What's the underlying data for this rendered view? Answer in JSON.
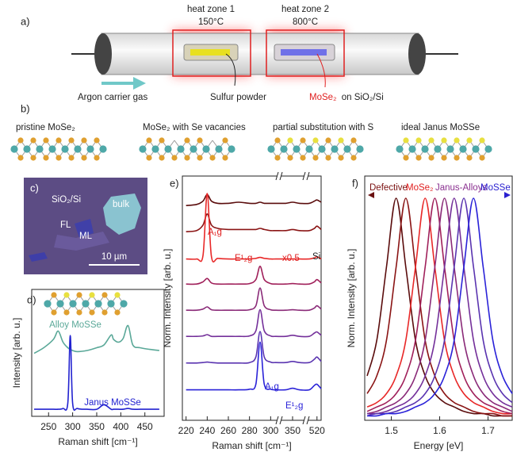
{
  "panel_a": {
    "label": "a)",
    "zone1_title": "heat zone 1",
    "zone1_temp": "150°C",
    "zone2_title": "heat zone 2",
    "zone2_temp": "800°C",
    "gas": "Argon carrier gas",
    "source": "Sulfur powder",
    "substrate_material": "MoSe₂",
    "substrate_rest": "on SiO₂/Si"
  },
  "panel_b": {
    "label": "b)",
    "structures": [
      "pristine MoSe₂",
      "MoSe₂ with Se vacancies",
      "partial substitution with S",
      "ideal Janus MoSSe"
    ]
  },
  "panel_c": {
    "label": "c)",
    "substrate": "SiO₂/Si",
    "bulk": "bulk",
    "few_layer": "FL",
    "monolayer": "ML",
    "scale_bar": "10 µm"
  },
  "chart_data": [
    {
      "type": "line",
      "label": "d)",
      "xlabel": "Raman shift [cm⁻¹]",
      "ylabel": "Intensity [arb. u.]",
      "xlim": [
        215,
        490
      ],
      "xticks": [
        250,
        300,
        350,
        400,
        450
      ],
      "x": [
        220,
        240,
        260,
        270,
        280,
        290,
        295,
        300,
        310,
        330,
        350,
        365,
        380,
        385,
        395,
        405,
        415,
        425,
        440,
        460,
        480
      ],
      "series": [
        {
          "name": "Alloy MoSSe",
          "color": "#5aa898",
          "values": [
            0.35,
            0.45,
            0.6,
            0.75,
            0.55,
            0.45,
            0.42,
            0.4,
            0.38,
            0.4,
            0.45,
            0.5,
            0.68,
            0.6,
            0.55,
            0.62,
            0.85,
            0.5,
            0.45,
            0.42,
            0.4
          ]
        },
        {
          "name": "Janus MoSSe",
          "color": "#2222d0",
          "values": [
            0.02,
            0.02,
            0.02,
            0.02,
            0.03,
            0.1,
            1.0,
            0.1,
            0.03,
            0.02,
            0.02,
            0.08,
            0.02,
            0.02,
            0.02,
            0.02,
            0.03,
            0.02,
            0.02,
            0.02,
            0.02
          ]
        }
      ]
    },
    {
      "type": "line",
      "label": "e)",
      "xlabel": "Raman shift [cm⁻¹]",
      "ylabel": "Norm. Intensity [arb. u.]",
      "xlim": [
        [
          218,
          305
        ],
        [
          335,
          365
        ],
        [
          505,
          528
        ]
      ],
      "xticks": [
        220,
        240,
        260,
        280,
        300,
        350,
        520
      ],
      "x": [
        220,
        230,
        236,
        240,
        244,
        250,
        260,
        270,
        280,
        286,
        290,
        294,
        300,
        305,
        340,
        350,
        360,
        505,
        515,
        520,
        528
      ],
      "series": [
        {
          "color": "#5a0c0c",
          "values": [
            0.1,
            0.15,
            0.3,
            0.6,
            0.3,
            0.2,
            0.2,
            0.25,
            0.2,
            0.2,
            0.25,
            0.2,
            0.2,
            0.2,
            0.2,
            0.25,
            0.2,
            0.2,
            0.3,
            0.35,
            0.25
          ]
        },
        {
          "color": "#8a1414",
          "values": [
            0.1,
            0.15,
            0.4,
            0.9,
            0.4,
            0.25,
            0.2,
            0.2,
            0.2,
            0.2,
            0.25,
            0.2,
            0.15,
            0.15,
            0.15,
            0.2,
            0.15,
            0.15,
            0.25,
            0.35,
            0.2
          ]
        },
        {
          "color": "#e82828",
          "values": [
            0.05,
            0.05,
            0.2,
            3.0,
            0.15,
            0.08,
            0.05,
            0.05,
            0.05,
            0.08,
            0.12,
            0.08,
            0.05,
            0.05,
            0.05,
            0.05,
            0.05,
            0.05,
            0.1,
            0.15,
            0.05
          ]
        },
        {
          "color": "#a0205a",
          "values": [
            0.1,
            0.1,
            0.2,
            0.35,
            0.15,
            0.1,
            0.1,
            0.1,
            0.12,
            0.3,
            0.9,
            0.3,
            0.12,
            0.1,
            0.1,
            0.12,
            0.1,
            0.1,
            0.2,
            0.3,
            0.15
          ]
        },
        {
          "color": "#8a2a78",
          "values": [
            0.1,
            0.1,
            0.15,
            0.25,
            0.12,
            0.1,
            0.1,
            0.1,
            0.12,
            0.3,
            1.1,
            0.3,
            0.12,
            0.1,
            0.1,
            0.12,
            0.1,
            0.1,
            0.2,
            0.3,
            0.15
          ]
        },
        {
          "color": "#74309a",
          "values": [
            0.1,
            0.1,
            0.12,
            0.18,
            0.1,
            0.1,
            0.1,
            0.1,
            0.12,
            0.35,
            1.3,
            0.35,
            0.12,
            0.1,
            0.1,
            0.15,
            0.1,
            0.1,
            0.25,
            0.3,
            0.15
          ]
        },
        {
          "color": "#5a34b0",
          "values": [
            0.08,
            0.08,
            0.1,
            0.12,
            0.1,
            0.08,
            0.08,
            0.08,
            0.1,
            0.35,
            1.5,
            0.35,
            0.12,
            0.1,
            0.1,
            0.15,
            0.1,
            0.1,
            0.25,
            0.35,
            0.15
          ]
        },
        {
          "color": "#2a22d8",
          "values": [
            0.05,
            0.05,
            0.05,
            0.05,
            0.05,
            0.05,
            0.05,
            0.05,
            0.08,
            0.3,
            2.2,
            0.3,
            0.08,
            0.05,
            0.05,
            0.12,
            0.05,
            0.05,
            0.25,
            0.3,
            0.1
          ]
        }
      ],
      "annotations": [
        {
          "text": "A₁g",
          "color": "#e02020"
        },
        {
          "text": "E¹₂g",
          "color": "#e02020"
        },
        {
          "text": "x0.5",
          "color": "#e02020"
        },
        {
          "text": "Si",
          "color": "#222222"
        },
        {
          "text": "A₁g",
          "color": "#2a22d8"
        },
        {
          "text": "E¹₂g",
          "color": "#2a22d8"
        }
      ]
    },
    {
      "type": "line",
      "label": "f)",
      "xlabel": "Energy [eV]",
      "ylabel": "Norm. Intensity [arb. u.]",
      "xlim": [
        1.445,
        1.75
      ],
      "ylim": [
        0,
        1.1
      ],
      "xticks": [
        1.5,
        1.6,
        1.7
      ],
      "x": [
        1.45,
        1.47,
        1.49,
        1.51,
        1.53,
        1.55,
        1.57,
        1.59,
        1.61,
        1.63,
        1.65,
        1.67,
        1.69,
        1.71,
        1.73,
        1.75
      ],
      "series": [
        {
          "color": "#5a0c0c",
          "values": [
            0.2,
            0.36,
            0.69,
            1,
            0.69,
            0.36,
            0.2,
            0.12,
            0.08,
            0.06,
            0.04,
            0.03,
            0.03,
            0.02,
            0.02,
            0.02
          ]
        },
        {
          "color": "#8a1414",
          "values": [
            0.12,
            0.2,
            0.36,
            0.69,
            1,
            0.69,
            0.36,
            0.2,
            0.12,
            0.08,
            0.06,
            0.04,
            0.03,
            0.03,
            0.02,
            0.02
          ]
        },
        {
          "color": "#e82828",
          "values": [
            0.06,
            0.08,
            0.12,
            0.2,
            0.36,
            0.69,
            1,
            0.69,
            0.36,
            0.2,
            0.12,
            0.08,
            0.06,
            0.04,
            0.03,
            0.03
          ]
        },
        {
          "color": "#a0205a",
          "values": [
            0.04,
            0.06,
            0.08,
            0.12,
            0.2,
            0.36,
            0.69,
            1,
            0.69,
            0.36,
            0.2,
            0.12,
            0.08,
            0.06,
            0.04,
            0.03
          ]
        },
        {
          "color": "#8a2a78",
          "values": [
            0.03,
            0.04,
            0.06,
            0.08,
            0.12,
            0.2,
            0.36,
            0.69,
            1,
            0.69,
            0.36,
            0.2,
            0.12,
            0.08,
            0.06,
            0.04
          ]
        },
        {
          "color": "#74309a",
          "values": [
            0.03,
            0.03,
            0.04,
            0.06,
            0.08,
            0.12,
            0.2,
            0.36,
            0.69,
            1,
            0.69,
            0.36,
            0.2,
            0.12,
            0.08,
            0.06
          ]
        },
        {
          "color": "#5a34b0",
          "values": [
            0.02,
            0.03,
            0.03,
            0.04,
            0.06,
            0.08,
            0.12,
            0.2,
            0.36,
            0.69,
            1,
            0.69,
            0.36,
            0.2,
            0.12,
            0.08
          ]
        },
        {
          "color": "#2a22d8",
          "values": [
            0.02,
            0.02,
            0.03,
            0.03,
            0.04,
            0.06,
            0.08,
            0.12,
            0.2,
            0.36,
            0.69,
            1,
            0.69,
            0.36,
            0.2,
            0.12
          ]
        }
      ],
      "annotations": [
        {
          "text": "Defective",
          "color": "#7a1010"
        },
        {
          "text": "MoSe₂",
          "color": "#e02020"
        },
        {
          "text": "Janus-Alloys",
          "color": "#8a3090"
        },
        {
          "text": "MoSSe",
          "color": "#2a20d0"
        }
      ]
    }
  ]
}
